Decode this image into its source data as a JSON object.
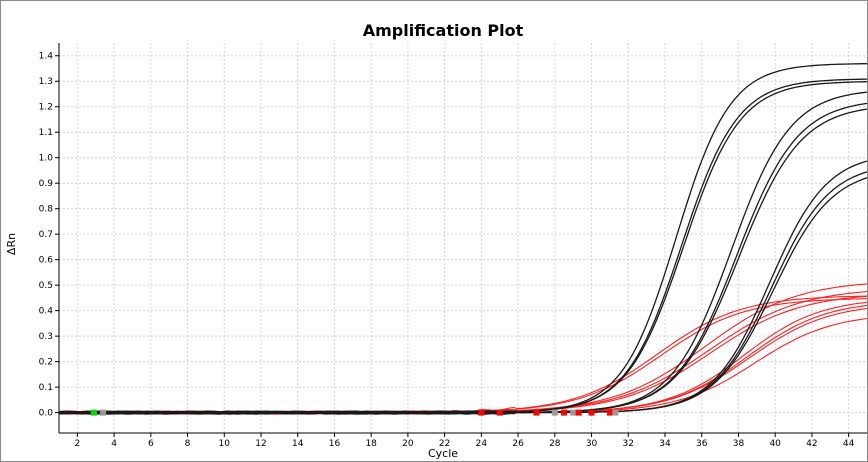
{
  "chart_data": {
    "type": "line",
    "title": "Amplification Plot",
    "xlabel": "Cycle",
    "ylabel": "ΔRn",
    "xlim": [
      1,
      45
    ],
    "ylim": [
      -0.08,
      1.45
    ],
    "xticks": [
      2,
      4,
      6,
      8,
      10,
      12,
      14,
      16,
      18,
      20,
      22,
      24,
      26,
      28,
      30,
      32,
      34,
      36,
      38,
      40,
      42,
      44
    ],
    "yticks": [
      0.0,
      0.1,
      0.2,
      0.3,
      0.4,
      0.5,
      0.6,
      0.7,
      0.8,
      0.9,
      1.0,
      1.1,
      1.2,
      1.3,
      1.4
    ],
    "grid": true,
    "colors": {
      "black_series": "#1a1a1a",
      "red_series": "#ff2020",
      "baseline_marker": "#00dd00",
      "threshold_marker_red": "#ff0000",
      "threshold_marker_gray": "#9a9a9a"
    },
    "series": [
      {
        "color": "#1a1a1a",
        "plateau": 1.37,
        "midpoint": 34.6,
        "slope": 0.68
      },
      {
        "color": "#1a1a1a",
        "plateau": 1.31,
        "midpoint": 34.9,
        "slope": 0.66
      },
      {
        "color": "#1a1a1a",
        "plateau": 1.3,
        "midpoint": 35.0,
        "slope": 0.65
      },
      {
        "color": "#1a1a1a",
        "plateau": 1.27,
        "midpoint": 37.6,
        "slope": 0.62
      },
      {
        "color": "#1a1a1a",
        "plateau": 1.23,
        "midpoint": 37.9,
        "slope": 0.6
      },
      {
        "color": "#1a1a1a",
        "plateau": 1.21,
        "midpoint": 38.0,
        "slope": 0.59
      },
      {
        "color": "#1a1a1a",
        "plateau": 1.02,
        "midpoint": 39.7,
        "slope": 0.64
      },
      {
        "color": "#1a1a1a",
        "plateau": 0.98,
        "midpoint": 39.8,
        "slope": 0.63
      },
      {
        "color": "#1a1a1a",
        "plateau": 0.96,
        "midpoint": 39.9,
        "slope": 0.62
      },
      {
        "color": "#ff2020",
        "plateau": 0.46,
        "midpoint": 33.6,
        "slope": 0.44
      },
      {
        "color": "#ff2020",
        "plateau": 0.45,
        "midpoint": 33.8,
        "slope": 0.44
      },
      {
        "color": "#ff2020",
        "plateau": 0.52,
        "midpoint": 36.2,
        "slope": 0.4
      },
      {
        "color": "#ff2020",
        "plateau": 0.49,
        "midpoint": 36.4,
        "slope": 0.4
      },
      {
        "color": "#ff2020",
        "plateau": 0.47,
        "midpoint": 36.5,
        "slope": 0.41
      },
      {
        "color": "#ff2020",
        "plateau": 0.45,
        "midpoint": 38.3,
        "slope": 0.48
      },
      {
        "color": "#ff2020",
        "plateau": 0.44,
        "midpoint": 38.5,
        "slope": 0.47
      },
      {
        "color": "#ff2020",
        "plateau": 0.43,
        "midpoint": 38.6,
        "slope": 0.46
      },
      {
        "color": "#ff2020",
        "plateau": 0.39,
        "midpoint": 38.9,
        "slope": 0.47
      }
    ],
    "markers": [
      {
        "x": 2.9,
        "y": 0.0,
        "color": "#00dd00"
      },
      {
        "x": 3.4,
        "y": 0.0,
        "color": "#9a9a9a"
      },
      {
        "x": 24.0,
        "y": 0.0,
        "color": "#ff0000"
      },
      {
        "x": 25.0,
        "y": 0.0,
        "color": "#ff0000"
      },
      {
        "x": 27.0,
        "y": 0.0,
        "color": "#ff0000"
      },
      {
        "x": 28.0,
        "y": 0.0,
        "color": "#9a9a9a"
      },
      {
        "x": 28.5,
        "y": 0.0,
        "color": "#ff0000"
      },
      {
        "x": 29.0,
        "y": 0.0,
        "color": "#9a9a9a"
      },
      {
        "x": 29.3,
        "y": 0.0,
        "color": "#ff0000"
      },
      {
        "x": 30.0,
        "y": 0.0,
        "color": "#ff0000"
      },
      {
        "x": 31.0,
        "y": 0.0,
        "color": "#ff0000"
      },
      {
        "x": 31.3,
        "y": 0.0,
        "color": "#9a9a9a"
      }
    ]
  }
}
